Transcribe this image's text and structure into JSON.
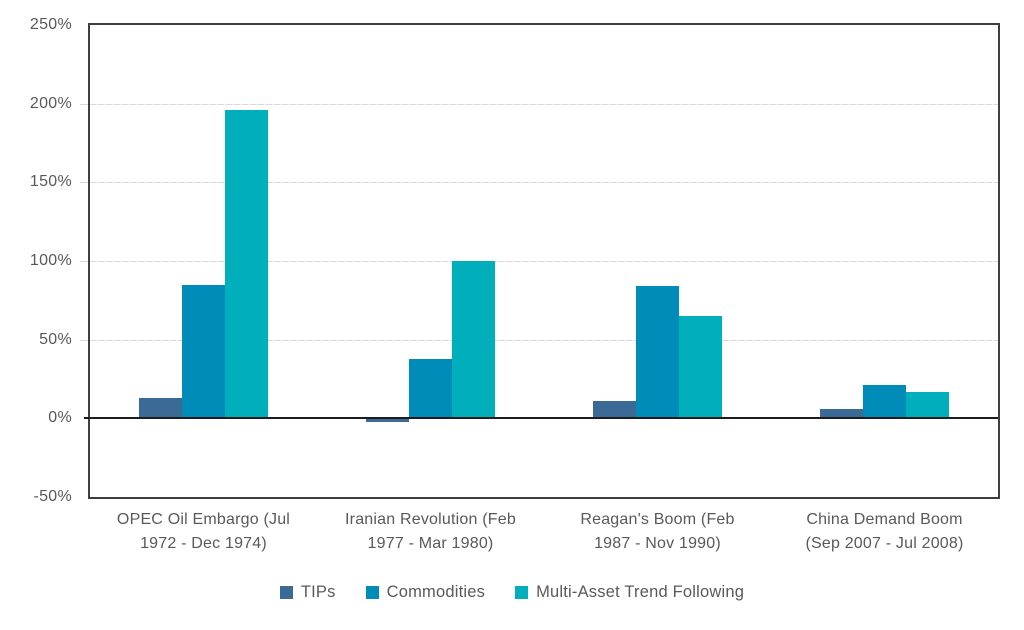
{
  "chart_data": {
    "type": "bar",
    "title": "",
    "xlabel": "",
    "ylabel": "",
    "categories": [
      "OPEC Oil Embargo (Jul 1972 - Dec 1974)",
      "Iranian Revolution (Feb 1977 - Mar 1980)",
      "Reagan's Boom (Feb 1987 - Nov 1990)",
      "China Demand Boom (Sep 2007 - Jul 2008)"
    ],
    "category_lines": [
      [
        "OPEC Oil Embargo (Jul",
        "1972 - Dec 1974)"
      ],
      [
        "Iranian Revolution (Feb",
        "1977 - Mar 1980)"
      ],
      [
        "Reagan's Boom (Feb",
        "1987 - Nov 1990)"
      ],
      [
        "China Demand Boom",
        "(Sep 2007 - Jul 2008)"
      ]
    ],
    "series": [
      {
        "name": "TIPs",
        "color": "#3c6a97",
        "values": [
          13,
          -2,
          11,
          6
        ]
      },
      {
        "name": "Commodities",
        "color": "#008cb8",
        "values": [
          85,
          38,
          84,
          21
        ]
      },
      {
        "name": "Multi-Asset Trend Following",
        "color": "#00aebc",
        "values": [
          196,
          100,
          65,
          17
        ]
      }
    ],
    "ylim": [
      -50,
      250
    ],
    "ytick_step": 50,
    "yticks": [
      "250%",
      "200%",
      "150%",
      "100%",
      "50%",
      "0%",
      "-50%"
    ],
    "grid": true,
    "legend_position": "bottom"
  },
  "colors": {
    "axis_border": "#3f3f3f",
    "zero_line": "#1c1c1c",
    "gridline": "#d9d9d9",
    "text": "#595959",
    "background": "#ffffff"
  }
}
